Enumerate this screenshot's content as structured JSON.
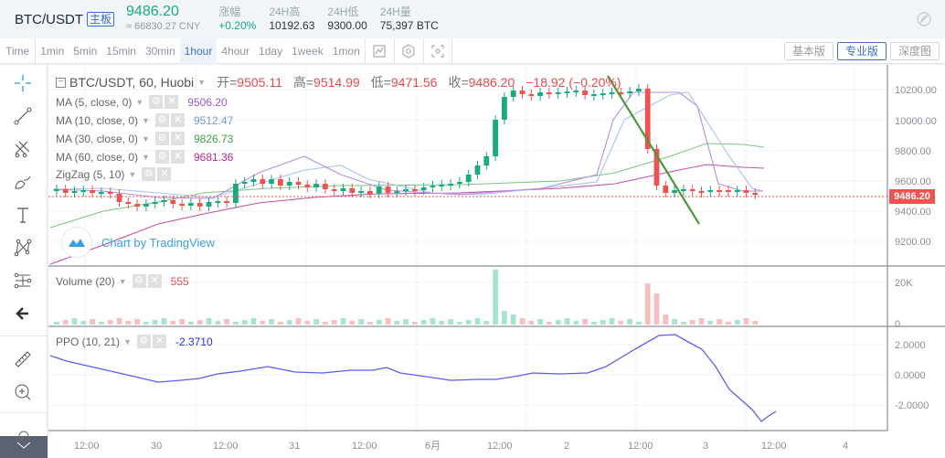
{
  "header": {
    "pair": "BTC/USDT",
    "badge": "主板",
    "last_price": "9486.20",
    "cny_price": "≈ 66830.27 CNY",
    "stats": [
      {
        "label": "涨幅",
        "value": "+0.20%"
      },
      {
        "label": "24H高",
        "value": "10192.63"
      },
      {
        "label": "24H低",
        "value": "9300.00"
      },
      {
        "label": "24H量",
        "value": "75,397 BTC"
      }
    ],
    "settings_icon": "brush-off-icon"
  },
  "toolbar": {
    "intervals": [
      "Time",
      "1min",
      "5min",
      "15min",
      "30min",
      "1hour",
      "4hour",
      "1day",
      "1week",
      "1mon"
    ],
    "active_interval": "1hour",
    "icons": [
      "indicator-icon",
      "settings-hex-icon",
      "fullscreen-icon"
    ],
    "modes": [
      "基本版",
      "专业版",
      "深度图"
    ],
    "active_mode": "专业版"
  },
  "left_tools": [
    "crosshair-icon",
    "trend-line-icon",
    "pitchfork-icon",
    "brush-icon",
    "text-icon",
    "pattern-icon",
    "fib-icon",
    "back-arrow-icon",
    "ruler-icon",
    "zoom-in-icon",
    "magnet-icon"
  ],
  "main_legend": {
    "symbol": "BTC/USDT, 60, Huobi",
    "open_label": "开=",
    "open": "9505.11",
    "high_label": "高=",
    "high": "9514.99",
    "low_label": "低=",
    "low": "9471.56",
    "close_label": "收=",
    "close": "9486.20",
    "change": "−18.92 (−0.20%)"
  },
  "indicators": [
    {
      "name": "MA (5, close, 0)",
      "value": "9506.20",
      "color": "#9b59c9"
    },
    {
      "name": "MA (10, close, 0)",
      "value": "9512.47",
      "color": "#6f9ad6"
    },
    {
      "name": "MA (30, close, 0)",
      "value": "9826.73",
      "color": "#3da04d"
    },
    {
      "name": "MA (60, close, 0)",
      "value": "9681.36",
      "color": "#b82a8e"
    },
    {
      "name": "ZigZag (5, 10)",
      "value": "",
      "color": "#4a9a3a"
    }
  ],
  "volume_legend": {
    "name": "Volume (20)",
    "value": "555"
  },
  "ppo_legend": {
    "name": "PPO (10, 21)",
    "value": "-2.3710"
  },
  "watermark": "Chart by TradingView",
  "current_price_tag": "9486.20",
  "chart_data": {
    "type": "candlestick",
    "title": "BTC/USDT, 60, Huobi",
    "price_axis": {
      "ticks": [
        "10200.00",
        "10000.00",
        "9800.00",
        "9600.00",
        "9400.00",
        "9200.00"
      ],
      "ylim": [
        9100,
        10300
      ]
    },
    "volume_axis": {
      "ticks": [
        "20K",
        "0"
      ]
    },
    "ppo_axis": {
      "ticks": [
        "2.0000",
        "0.0000",
        "-2.0000"
      ]
    },
    "time_axis": {
      "ticks": [
        "12:00",
        "30",
        "12:00",
        "31",
        "12:00",
        "6月",
        "12:00",
        "2",
        "12:00",
        "3",
        "12:00",
        "4"
      ]
    },
    "current_price": 9486.2,
    "ohlc_last": {
      "open": 9505.11,
      "high": 9514.99,
      "low": 9471.56,
      "close": 9486.2
    },
    "zigzag": [
      {
        "x": "Jun 2 ~14:00",
        "y": 10290
      },
      {
        "x": "Jun 2 ~23:00",
        "y": 9300
      }
    ],
    "notable_volume_spikes": [
      {
        "x": "Jun 2 ~14:00",
        "approx": 22000,
        "dir": "up"
      },
      {
        "x": "Jun 2 ~23:00",
        "approx": 17000,
        "dir": "down"
      }
    ],
    "ppo_series_approx": [
      0.8,
      0.4,
      0.0,
      -0.4,
      -0.5,
      -0.3,
      -0.2,
      0.1,
      0.3,
      0.0,
      0.1,
      0.3,
      -0.1,
      -0.4,
      -0.6,
      -0.6,
      -0.5,
      -0.3,
      0.0,
      0.0,
      0.0,
      0.4,
      1.6,
      2.4,
      2.8,
      1.9,
      0.5,
      -1.8,
      -3.1,
      -2.4
    ]
  }
}
